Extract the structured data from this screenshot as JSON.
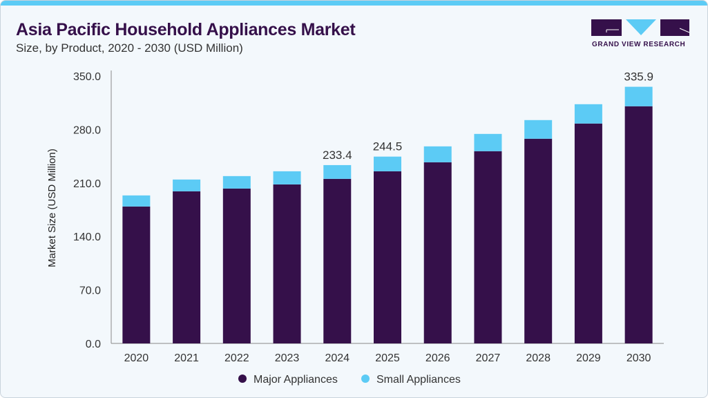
{
  "header": {
    "title": "Asia Pacific Household Appliances Market",
    "subtitle": "Size, by Product, 2020 - 2030 (USD Million)"
  },
  "logo": {
    "text": "GRAND VIEW RESEARCH"
  },
  "colors": {
    "major": "#35104a",
    "small": "#5ccbf5",
    "accent": "#5ccbf5"
  },
  "chart_data": {
    "type": "bar",
    "stacked": true,
    "title": "Asia Pacific Household Appliances Market",
    "ylabel": "Market Size (USD Million)",
    "xlabel": "",
    "ylim": [
      0,
      350
    ],
    "yticks": [
      "0.0",
      "70.0",
      "140.0",
      "210.0",
      "280.0",
      "350.0"
    ],
    "categories": [
      "2020",
      "2021",
      "2022",
      "2023",
      "2024",
      "2025",
      "2026",
      "2027",
      "2028",
      "2029",
      "2030"
    ],
    "series": [
      {
        "name": "Major Appliances",
        "values": [
          179.2,
          199.1,
          202.7,
          208.1,
          215.4,
          225.3,
          237.1,
          251.6,
          267.9,
          287.8,
          310.4
        ]
      },
      {
        "name": "Small Appliances",
        "values": [
          14.5,
          15.4,
          16.3,
          17.2,
          18.0,
          19.2,
          20.8,
          22.6,
          24.4,
          25.3,
          25.5
        ]
      }
    ],
    "data_labels": [
      {
        "category": "2024",
        "text": "233.4"
      },
      {
        "category": "2025",
        "text": "244.5"
      },
      {
        "category": "2030",
        "text": "335.9"
      }
    ],
    "grid": false,
    "legend": "bottom"
  }
}
